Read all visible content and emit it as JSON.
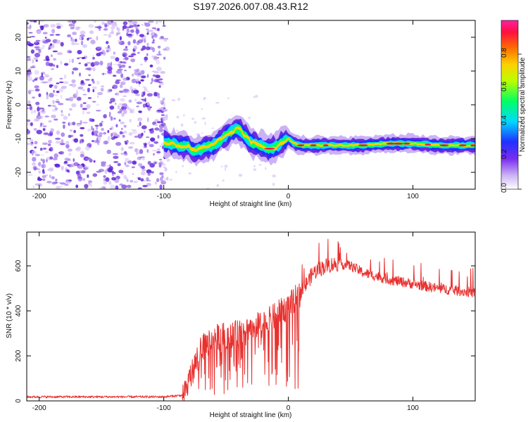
{
  "title": "S197.2026.007.08.43.R12",
  "colors": {
    "snr_line": "#e8312f",
    "frame": "#000000",
    "speckle_dark": "#5a1fd0",
    "speckle_light": "#c7a8f2"
  },
  "chart_data": [
    {
      "type": "heatmap",
      "title": "S197.2026.007.08.43.R12",
      "xlabel": "Height of straight line (km)",
      "ylabel": "Frequency (Hz)",
      "xlim": [
        -210,
        150
      ],
      "ylim": [
        -25,
        25
      ],
      "xticks": [
        -200,
        -100,
        0,
        100
      ],
      "xtick_labels": [
        "-200",
        "-100",
        "0",
        "100"
      ],
      "yticks": [
        -20,
        -10,
        0,
        10,
        20
      ],
      "ytick_labels": [
        "-20",
        "-10",
        "0",
        "10",
        "20"
      ],
      "noise_region_x": [
        -210,
        -97
      ],
      "ridge_x": [
        -100,
        -90,
        -80,
        -75,
        -70,
        -60,
        -50,
        -40,
        -35,
        -30,
        -25,
        -20,
        -15,
        -10,
        -5,
        0,
        5,
        10,
        20,
        40,
        60,
        80,
        100,
        120,
        150
      ],
      "ridge_y": [
        -11,
        -12,
        -12.5,
        -14,
        -13,
        -12,
        -9,
        -7,
        -9,
        -11,
        -12,
        -12.5,
        -13,
        -12.5,
        -11,
        -10,
        -11.5,
        -12,
        -12,
        -12,
        -12,
        -11.5,
        -11.5,
        -12,
        -12
      ],
      "colorbar": {
        "label": "Normalized spectral amplitude",
        "range": [
          0,
          1
        ],
        "ticks": [
          "0.0",
          "0.2",
          "0.4",
          "0.6",
          "0.8"
        ],
        "colors": [
          "#ffffff",
          "#cdb5f5",
          "#7a2df0",
          "#2030ff",
          "#00d8ff",
          "#00ff66",
          "#b8ff00",
          "#ffd000",
          "#ff6a00",
          "#ff1040",
          "#ff20a0"
        ]
      }
    },
    {
      "type": "line",
      "xlabel": "Height of straight line (km)",
      "ylabel": "SNR (10 * v/v)",
      "xlim": [
        -210,
        150
      ],
      "ylim": [
        0,
        750
      ],
      "xticks": [
        -200,
        -100,
        0,
        100
      ],
      "xtick_labels": [
        "-200",
        "-100",
        "0",
        "100"
      ],
      "yticks": [
        0,
        200,
        400,
        600
      ],
      "ytick_labels": [
        "0",
        "200",
        "400",
        "600"
      ],
      "series": [
        {
          "name": "SNR",
          "x": [
            -210,
            -100,
            -85,
            -80,
            -70,
            -60,
            -40,
            -30,
            -20,
            -10,
            0,
            10,
            20,
            30,
            40,
            50,
            60,
            80,
            100,
            120,
            150
          ],
          "values": [
            18,
            18,
            25,
            90,
            230,
            280,
            300,
            330,
            340,
            380,
            420,
            480,
            570,
            600,
            610,
            600,
            570,
            540,
            520,
            500,
            480
          ]
        }
      ]
    }
  ]
}
